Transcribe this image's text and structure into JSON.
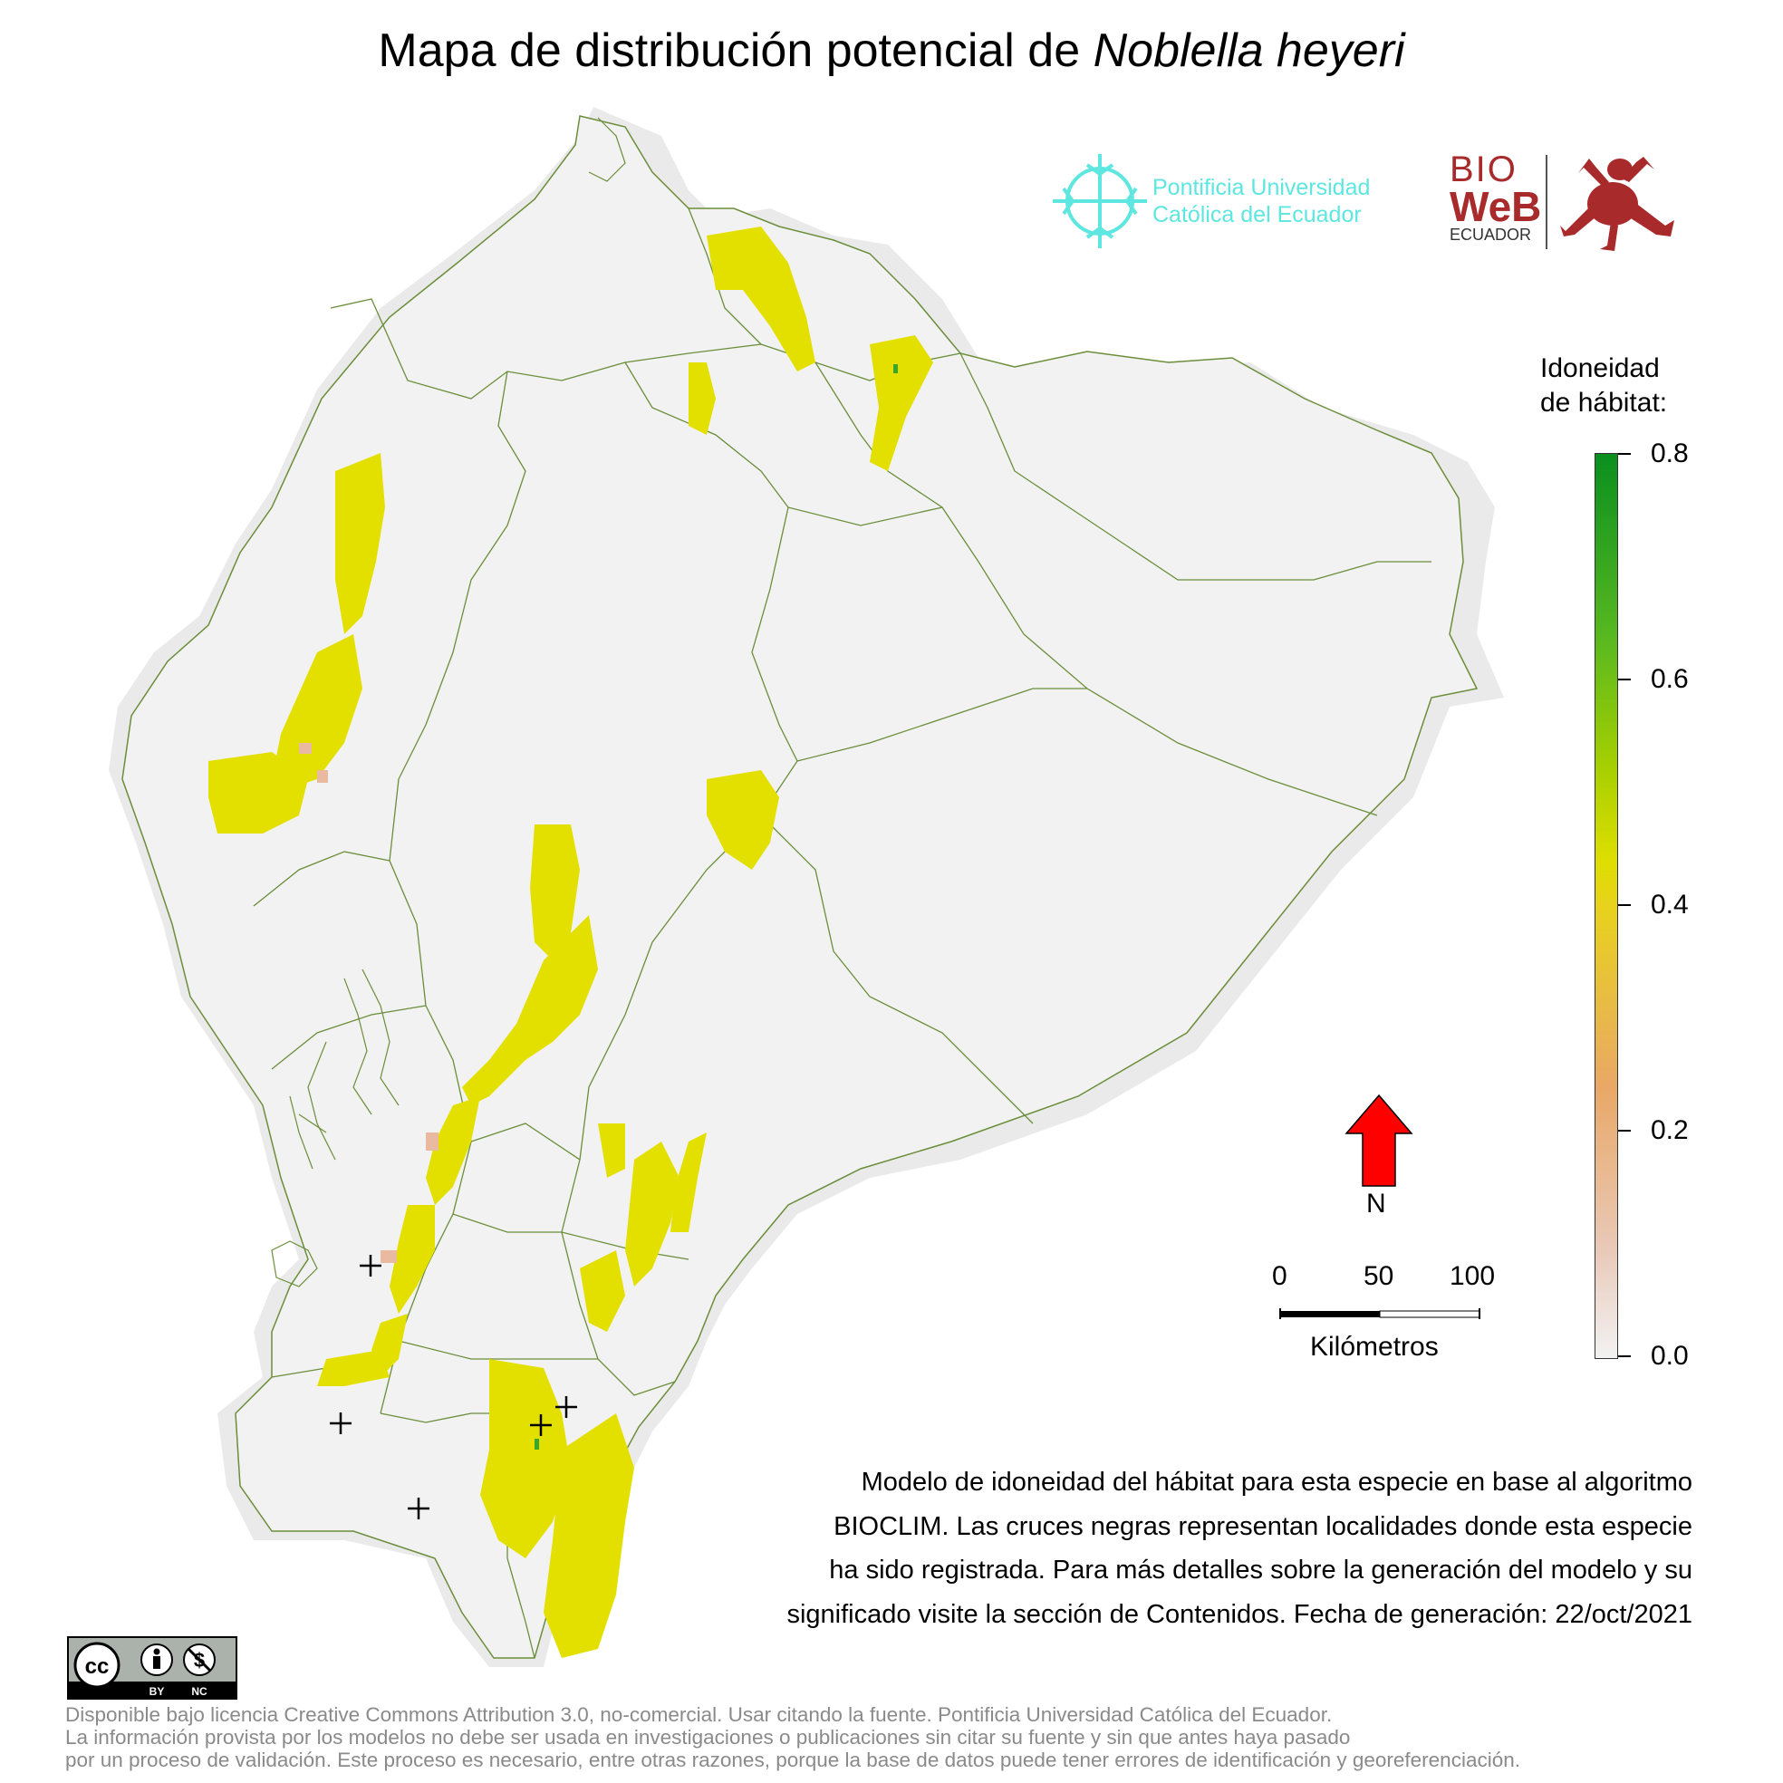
{
  "title": {
    "prefix": "Mapa de distribución potencial de",
    "species": "Noblella heyeri"
  },
  "logos": {
    "puce": {
      "line1": "Pontificia Universidad",
      "line2": "Católica del Ecuador",
      "color": "#5ee6e0"
    },
    "bioweb": {
      "word1": "BIO",
      "word2": "WeB",
      "word3": "ECUADOR",
      "color": "#a82a2a"
    }
  },
  "legend": {
    "title_line1": "Idoneidad",
    "title_line2": "de hábitat:",
    "ticks": [
      "0.8",
      "0.6",
      "0.4",
      "0.2",
      "0.0"
    ],
    "colors": {
      "low": "#f2f2f2",
      "mid_low": "#e9a866",
      "mid": "#e8d21c",
      "high": "#0a8f1e"
    }
  },
  "north_arrow": {
    "label": "N",
    "color": "#ff0000"
  },
  "scale_bar": {
    "labels": [
      "0",
      "50",
      "100"
    ],
    "unit": "Kilómetros"
  },
  "caption": {
    "line1": "Modelo de idoneidad del hábitat para esta especie en base al algoritmo",
    "line2": "BIOCLIM. Las cruces negras representan localidades donde esta especie",
    "line3": "ha sido registrada. Para más detalles sobre la generación del modelo y su",
    "line4": "significado visite la sección de Contenidos. Fecha de generación: 22/oct/2021"
  },
  "license_badge": {
    "labels": [
      "BY",
      "NC"
    ]
  },
  "footer": {
    "line1": "Disponible bajo licencia Creative Commons Attribution 3.0, no-comercial. Usar citando la fuente. Pontificia Universidad Católica del Ecuador.",
    "line2": "La información provista por los modelos no debe ser usada en investigaciones o publicaciones sin citar su fuente y sin que antes haya pasado",
    "line3": "por un proceso de validación. Este proceso es necesario, entre otras razones, porque la base de datos puede tener errores de identificación y georeferenciación."
  },
  "map": {
    "land_color": "#f2f2f2",
    "border_color": "#6b8e3a",
    "habitat_color": "#e3e000",
    "low_habitat_color": "#e9b9a0",
    "record_marker": "+"
  }
}
